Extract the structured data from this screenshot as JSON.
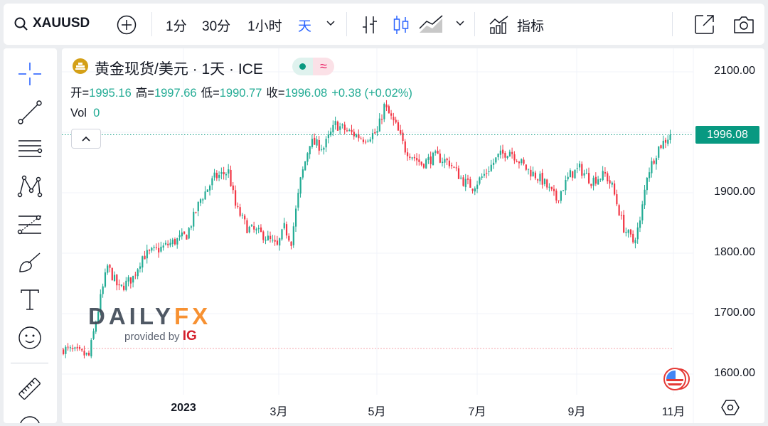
{
  "toolbar": {
    "symbol": "XAUUSD",
    "intervals": [
      "1分",
      "30分",
      "1小时",
      "天"
    ],
    "active_interval": "天",
    "indicators_label": "指标",
    "accent": "#2962ff"
  },
  "legend": {
    "title": "黄金现货/美元 · 1天 · ICE",
    "open_label": "开=",
    "open": "1995.16",
    "high_label": "高=",
    "high": "1997.66",
    "low_label": "低=",
    "low": "1990.77",
    "close_label": "收=",
    "close": "1996.08",
    "change": "+0.38 (+0.02%)",
    "vol_label": "Vol",
    "vol": "0"
  },
  "price_axis": {
    "labels": [
      "2100.00",
      "1900.00",
      "1800.00",
      "1700.00",
      "1600.00"
    ],
    "current": "1996.08",
    "current_color": "#089981"
  },
  "time_axis": {
    "labels": [
      "2023",
      "3月",
      "5月",
      "7月",
      "9月",
      "11月"
    ]
  },
  "watermark": {
    "brand_dark": "DAILY",
    "brand_orange": "FX",
    "provided": "provided by",
    "ig": "IG"
  },
  "chart_data": {
    "type": "candlestick",
    "symbol": "XAUUSD",
    "ylim": [
      1565,
      2140
    ],
    "yticks": [
      1600,
      1700,
      1800,
      1900,
      2000,
      2100
    ],
    "up_color": "#22ab94",
    "down_color": "#f23645",
    "close_keypoints_by_trading_day": [
      [
        0,
        1642
      ],
      [
        11,
        1630
      ],
      [
        16,
        1725
      ],
      [
        19,
        1778
      ],
      [
        24,
        1740
      ],
      [
        30,
        1760
      ],
      [
        34,
        1795
      ],
      [
        43,
        1810
      ],
      [
        53,
        1830
      ],
      [
        59,
        1889
      ],
      [
        65,
        1925
      ],
      [
        71,
        1935
      ],
      [
        74,
        1878
      ],
      [
        79,
        1842
      ],
      [
        86,
        1830
      ],
      [
        92,
        1810
      ],
      [
        95,
        1842
      ],
      [
        98,
        1820
      ],
      [
        102,
        1920
      ],
      [
        106,
        1984
      ],
      [
        112,
        1975
      ],
      [
        117,
        2013
      ],
      [
        123,
        2000
      ],
      [
        129,
        1990
      ],
      [
        135,
        2000
      ],
      [
        138,
        2043
      ],
      [
        143,
        2010
      ],
      [
        147,
        1972
      ],
      [
        154,
        1948
      ],
      [
        160,
        1960
      ],
      [
        166,
        1950
      ],
      [
        172,
        1919
      ],
      [
        176,
        1910
      ],
      [
        181,
        1930
      ],
      [
        187,
        1960
      ],
      [
        192,
        1970
      ],
      [
        199,
        1940
      ],
      [
        206,
        1920
      ],
      [
        212,
        1889
      ],
      [
        218,
        1930
      ],
      [
        222,
        1940
      ],
      [
        227,
        1920
      ],
      [
        233,
        1930
      ],
      [
        236,
        1910
      ],
      [
        241,
        1842
      ],
      [
        245,
        1819
      ],
      [
        248,
        1850
      ],
      [
        251,
        1930
      ],
      [
        256,
        1975
      ],
      [
        261,
        1996
      ]
    ]
  }
}
